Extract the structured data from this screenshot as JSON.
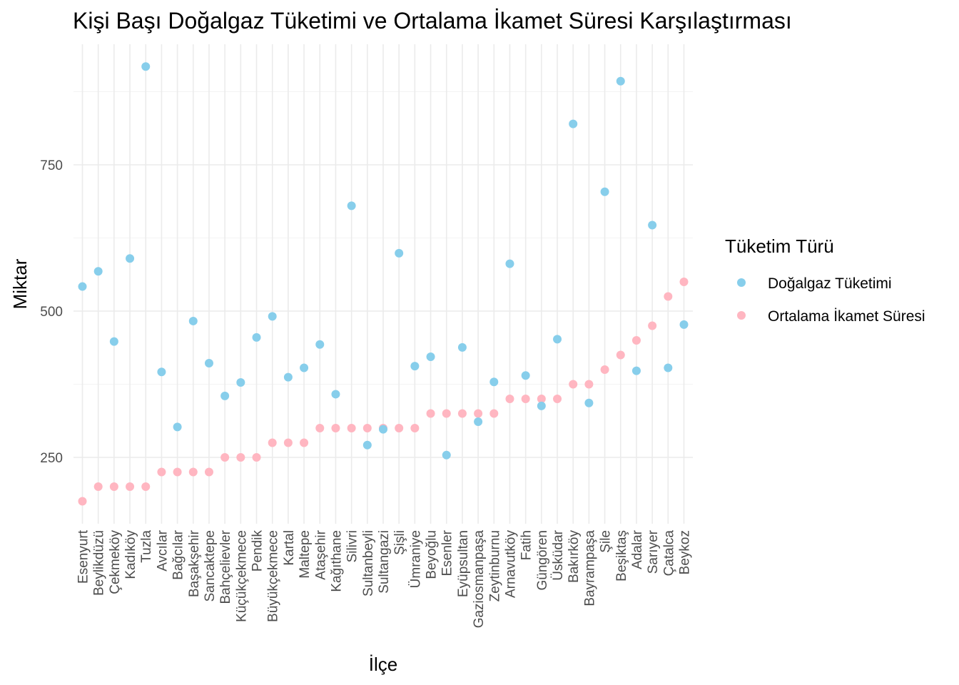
{
  "chart_data": {
    "type": "scatter",
    "title": "Kişi Başı Doğalgaz Tüketimi ve Ortalama İkamet Süresi Karşılaştırması",
    "xlabel": "İlçe",
    "ylabel": "Miktar",
    "ylim": [
      137,
      944
    ],
    "yticks": [
      250,
      500,
      750
    ],
    "grid": true,
    "legend": {
      "title": "Tüketim Türü",
      "placement": "right"
    },
    "categories": [
      "Esenyurt",
      "Beylikdüzü",
      "Çekmeköy",
      "Kadıköy",
      "Tuzla",
      "Avcılar",
      "Bağcılar",
      "Başakşehir",
      "Sancaktepe",
      "Bahçelievler",
      "Küçükçekmece",
      "Pendik",
      "Büyükçekmece",
      "Kartal",
      "Maltepe",
      "Ataşehir",
      "Kağıthane",
      "Silivri",
      "Sultanbeyli",
      "Sultangazi",
      "Şişli",
      "Ümraniye",
      "Beyoğlu",
      "Esenler",
      "Eyüpsultan",
      "Gaziosmanpaşa",
      "Zeytinburnu",
      "Arnavutköy",
      "Fatih",
      "Güngören",
      "Üsküdar",
      "Bakırköy",
      "Bayrampaşa",
      "Şile",
      "Beşiktaş",
      "Adalar",
      "Sarıyer",
      "Çatalca",
      "Beykoz"
    ],
    "series": [
      {
        "name": "Doğalgaz Tüketimi",
        "color": "#87ceeb",
        "values": [
          542,
          568,
          448,
          590,
          918,
          396,
          302,
          483,
          411,
          355,
          378,
          455,
          491,
          387,
          403,
          443,
          358,
          680,
          271,
          298,
          599,
          406,
          422,
          254,
          438,
          311,
          379,
          581,
          390,
          338,
          452,
          820,
          343,
          704,
          893,
          398,
          647,
          403,
          477
        ]
      },
      {
        "name": "Ortalama İkamet Süresi",
        "color": "#ffb6c1",
        "values": [
          175,
          200,
          200,
          200,
          200,
          225,
          225,
          225,
          225,
          250,
          250,
          250,
          275,
          275,
          275,
          300,
          300,
          300,
          300,
          300,
          300,
          300,
          325,
          325,
          325,
          325,
          325,
          350,
          350,
          350,
          350,
          375,
          375,
          400,
          425,
          450,
          475,
          525,
          550
        ]
      }
    ]
  }
}
